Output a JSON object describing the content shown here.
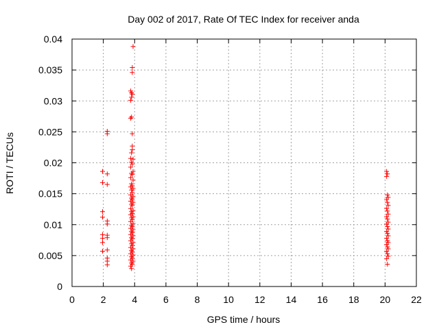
{
  "chart_data": {
    "type": "scatter",
    "title": "Day 002 of 2017, Rate Of TEC Index for receiver anda",
    "xlabel": "GPS time / hours",
    "ylabel": "ROTI / TECUs",
    "xlim": [
      0,
      22
    ],
    "ylim": [
      0,
      0.04
    ],
    "x_ticks": [
      "0",
      "2",
      "4",
      "6",
      "8",
      "10",
      "12",
      "14",
      "16",
      "18",
      "20",
      "22"
    ],
    "y_ticks": [
      "0",
      "0.005",
      "0.01",
      "0.015",
      "0.02",
      "0.025",
      "0.03",
      "0.035",
      "0.04"
    ],
    "grid": true,
    "marker": "+",
    "color": "#ff0000",
    "series": [
      {
        "points": [
          [
            1.95,
            0.0186
          ],
          [
            1.95,
            0.0168
          ],
          [
            1.95,
            0.0121
          ],
          [
            1.95,
            0.0112
          ],
          [
            1.95,
            0.0084
          ],
          [
            1.95,
            0.0078
          ],
          [
            1.95,
            0.0071
          ],
          [
            1.95,
            0.0057
          ],
          [
            2.25,
            0.0251
          ],
          [
            2.25,
            0.0247
          ],
          [
            2.25,
            0.0182
          ],
          [
            2.25,
            0.0165
          ],
          [
            2.25,
            0.0106
          ],
          [
            2.25,
            0.0101
          ],
          [
            2.25,
            0.0083
          ],
          [
            2.25,
            0.0079
          ],
          [
            2.25,
            0.0059
          ],
          [
            2.25,
            0.0046
          ],
          [
            2.25,
            0.0041
          ],
          [
            2.25,
            0.0035
          ],
          [
            3.9,
            0.0388
          ],
          [
            3.85,
            0.0354
          ],
          [
            3.85,
            0.0346
          ],
          [
            3.75,
            0.0316
          ],
          [
            3.8,
            0.0313
          ],
          [
            3.85,
            0.0311
          ],
          [
            3.8,
            0.0306
          ],
          [
            3.75,
            0.0301
          ],
          [
            3.8,
            0.0274
          ],
          [
            3.75,
            0.0272
          ],
          [
            3.85,
            0.0247
          ],
          [
            3.85,
            0.0227
          ],
          [
            3.85,
            0.0221
          ],
          [
            3.8,
            0.0216
          ],
          [
            3.75,
            0.0207
          ],
          [
            3.9,
            0.0206
          ],
          [
            3.8,
            0.0201
          ],
          [
            3.85,
            0.0198
          ],
          [
            3.75,
            0.0193
          ],
          [
            3.9,
            0.0186
          ],
          [
            3.8,
            0.0183
          ],
          [
            3.85,
            0.0181
          ],
          [
            3.75,
            0.0176
          ],
          [
            3.9,
            0.0172
          ],
          [
            3.8,
            0.0166
          ],
          [
            3.85,
            0.0163
          ],
          [
            3.75,
            0.0161
          ],
          [
            3.9,
            0.0158
          ],
          [
            3.8,
            0.0156
          ],
          [
            3.85,
            0.0152
          ],
          [
            3.75,
            0.0148
          ],
          [
            3.9,
            0.0146
          ],
          [
            3.8,
            0.0143
          ],
          [
            3.85,
            0.0141
          ],
          [
            3.75,
            0.0138
          ],
          [
            3.9,
            0.0136
          ],
          [
            3.8,
            0.0133
          ],
          [
            3.85,
            0.0131
          ],
          [
            3.75,
            0.0126
          ],
          [
            3.9,
            0.0123
          ],
          [
            3.8,
            0.0121
          ],
          [
            3.85,
            0.0118
          ],
          [
            3.75,
            0.0116
          ],
          [
            3.9,
            0.0113
          ],
          [
            3.8,
            0.0111
          ],
          [
            3.85,
            0.0108
          ],
          [
            3.75,
            0.0105
          ],
          [
            3.9,
            0.0102
          ],
          [
            3.8,
            0.0099
          ],
          [
            3.85,
            0.0097
          ],
          [
            3.75,
            0.0094
          ],
          [
            3.9,
            0.0092
          ],
          [
            3.8,
            0.0089
          ],
          [
            3.85,
            0.0087
          ],
          [
            3.75,
            0.0084
          ],
          [
            3.9,
            0.0082
          ],
          [
            3.8,
            0.0079
          ],
          [
            3.85,
            0.0077
          ],
          [
            3.75,
            0.0074
          ],
          [
            3.9,
            0.0071
          ],
          [
            3.8,
            0.0069
          ],
          [
            3.85,
            0.0066
          ],
          [
            3.75,
            0.0063
          ],
          [
            3.9,
            0.0061
          ],
          [
            3.8,
            0.0058
          ],
          [
            3.85,
            0.0056
          ],
          [
            3.75,
            0.0053
          ],
          [
            3.9,
            0.0051
          ],
          [
            3.8,
            0.0048
          ],
          [
            3.85,
            0.0046
          ],
          [
            3.75,
            0.0043
          ],
          [
            3.9,
            0.0041
          ],
          [
            3.8,
            0.0038
          ],
          [
            3.85,
            0.0036
          ],
          [
            3.75,
            0.0033
          ],
          [
            3.8,
            0.0029
          ],
          [
            20.1,
            0.0186
          ],
          [
            20.15,
            0.0182
          ],
          [
            20.1,
            0.0178
          ],
          [
            20.15,
            0.0148
          ],
          [
            20.2,
            0.0144
          ],
          [
            20.1,
            0.0141
          ],
          [
            20.15,
            0.0136
          ],
          [
            20.2,
            0.0131
          ],
          [
            20.1,
            0.0126
          ],
          [
            20.15,
            0.0122
          ],
          [
            20.2,
            0.0117
          ],
          [
            20.1,
            0.0113
          ],
          [
            20.15,
            0.0109
          ],
          [
            20.2,
            0.0104
          ],
          [
            20.1,
            0.0101
          ],
          [
            20.15,
            0.0097
          ],
          [
            20.2,
            0.0093
          ],
          [
            20.1,
            0.0089
          ],
          [
            20.15,
            0.0086
          ],
          [
            20.2,
            0.0082
          ],
          [
            20.1,
            0.0078
          ],
          [
            20.15,
            0.0074
          ],
          [
            20.2,
            0.0071
          ],
          [
            20.1,
            0.0068
          ],
          [
            20.15,
            0.0064
          ],
          [
            20.2,
            0.0061
          ],
          [
            20.1,
            0.0057
          ],
          [
            20.15,
            0.0053
          ],
          [
            20.2,
            0.0049
          ],
          [
            20.1,
            0.0045
          ],
          [
            20.15,
            0.0036
          ]
        ]
      }
    ]
  }
}
